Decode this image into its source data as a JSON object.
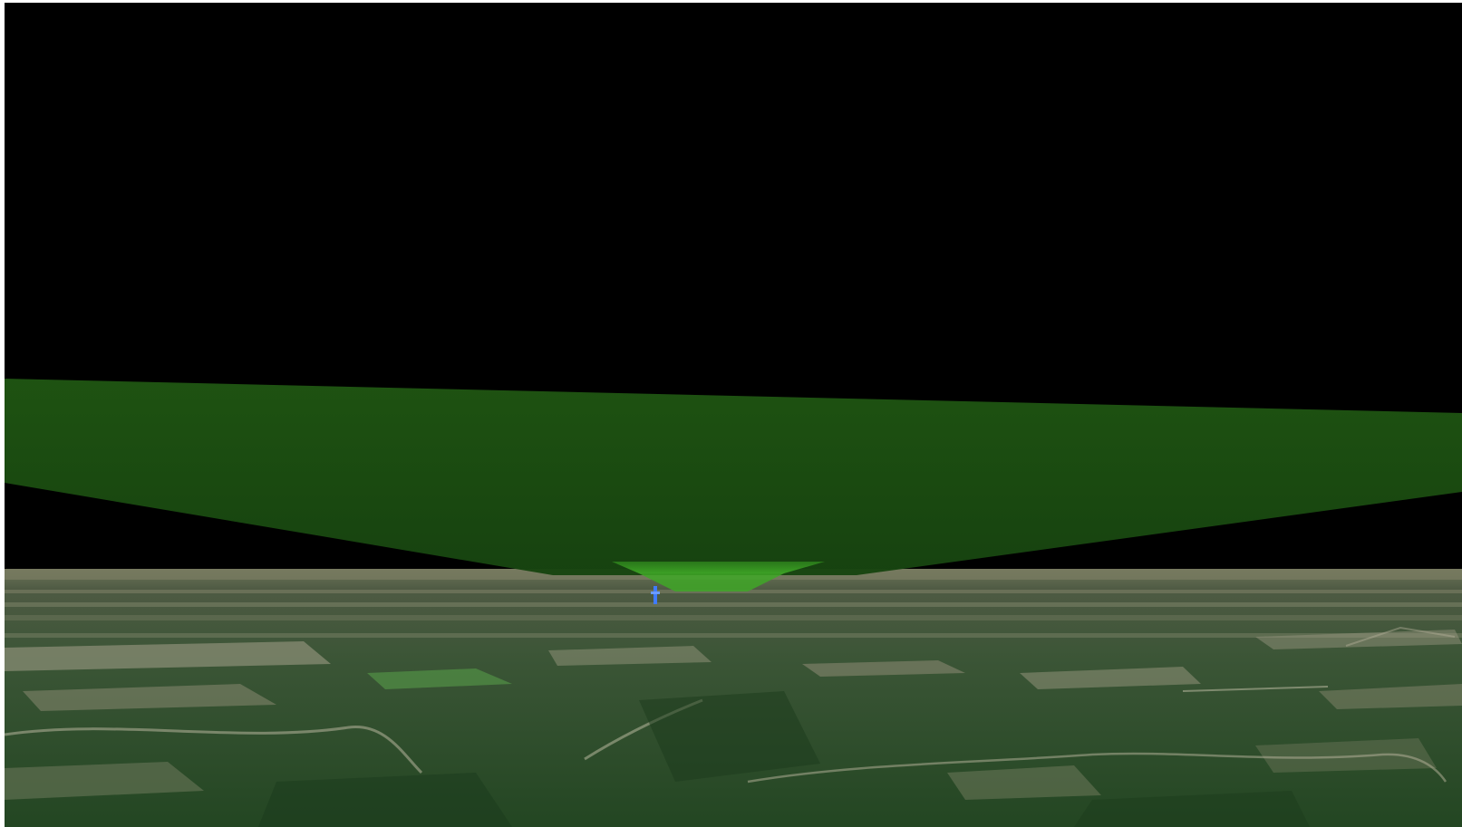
{
  "viewer": {
    "sky_color": "#000000",
    "volume_color": "#1b4a0f",
    "volume_top_color": "#2f8a1e",
    "terrain_base_color": "#2c4a2a",
    "terrain_light_color": "#9a9a7e",
    "marker_color": "#3f7bff"
  }
}
